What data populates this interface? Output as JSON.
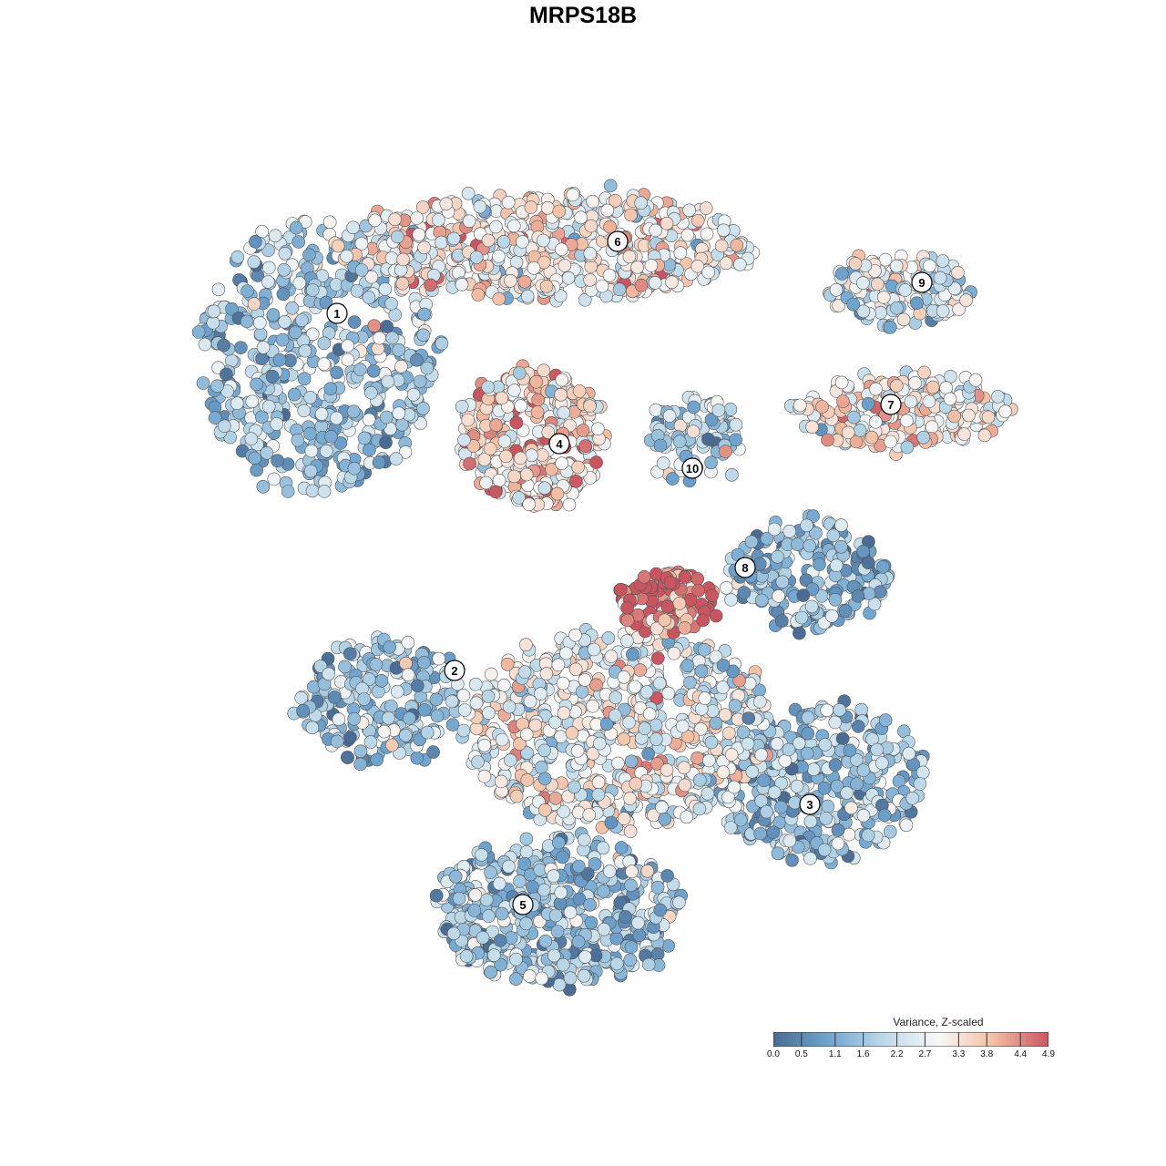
{
  "chart_data": {
    "type": "scatter",
    "title": "MRPS18B",
    "xlabel": "",
    "ylabel": "",
    "grid": false,
    "legend": {
      "title": "Variance, Z-scaled",
      "placement": "bottom-right",
      "range": [
        0.0,
        4.9
      ],
      "ticks": [
        "0.0",
        "0.5",
        "1.1",
        "1.6",
        "2.2",
        "2.7",
        "3.3",
        "3.8",
        "4.4",
        "4.9"
      ],
      "tick_values": [
        0.0,
        0.5,
        1.1,
        1.6,
        2.2,
        2.7,
        3.3,
        3.8,
        4.4,
        4.9
      ],
      "colors": [
        "#4a6c94",
        "#6fa4cf",
        "#bdd9e9",
        "#f7f7f7",
        "#f4bfa4",
        "#c95560"
      ]
    },
    "clusters": [
      {
        "label": "1",
        "x": -3.2,
        "y": 3.1,
        "mean": 1.6
      },
      {
        "label": "2",
        "x": -1.5,
        "y": -1.1,
        "mean": 1.7
      },
      {
        "label": "3",
        "x": 3.4,
        "y": -2.1,
        "mean": 1.6
      },
      {
        "label": "4",
        "x": -0.3,
        "y": 2.0,
        "mean": 3.4
      },
      {
        "label": "5",
        "x": -0.6,
        "y": -3.2,
        "mean": 1.6
      },
      {
        "label": "6",
        "x": 0.4,
        "y": 3.8,
        "mean": 3.0
      },
      {
        "label": "7",
        "x": 4.2,
        "y": 2.3,
        "mean": 3.1
      },
      {
        "label": "8",
        "x": 2.1,
        "y": 0.6,
        "mean": 1.3
      },
      {
        "label": "9",
        "x": 4.6,
        "y": 3.4,
        "mean": 2.4
      },
      {
        "label": "10",
        "x": 1.3,
        "y": 1.7,
        "mean": 2.1
      }
    ]
  }
}
